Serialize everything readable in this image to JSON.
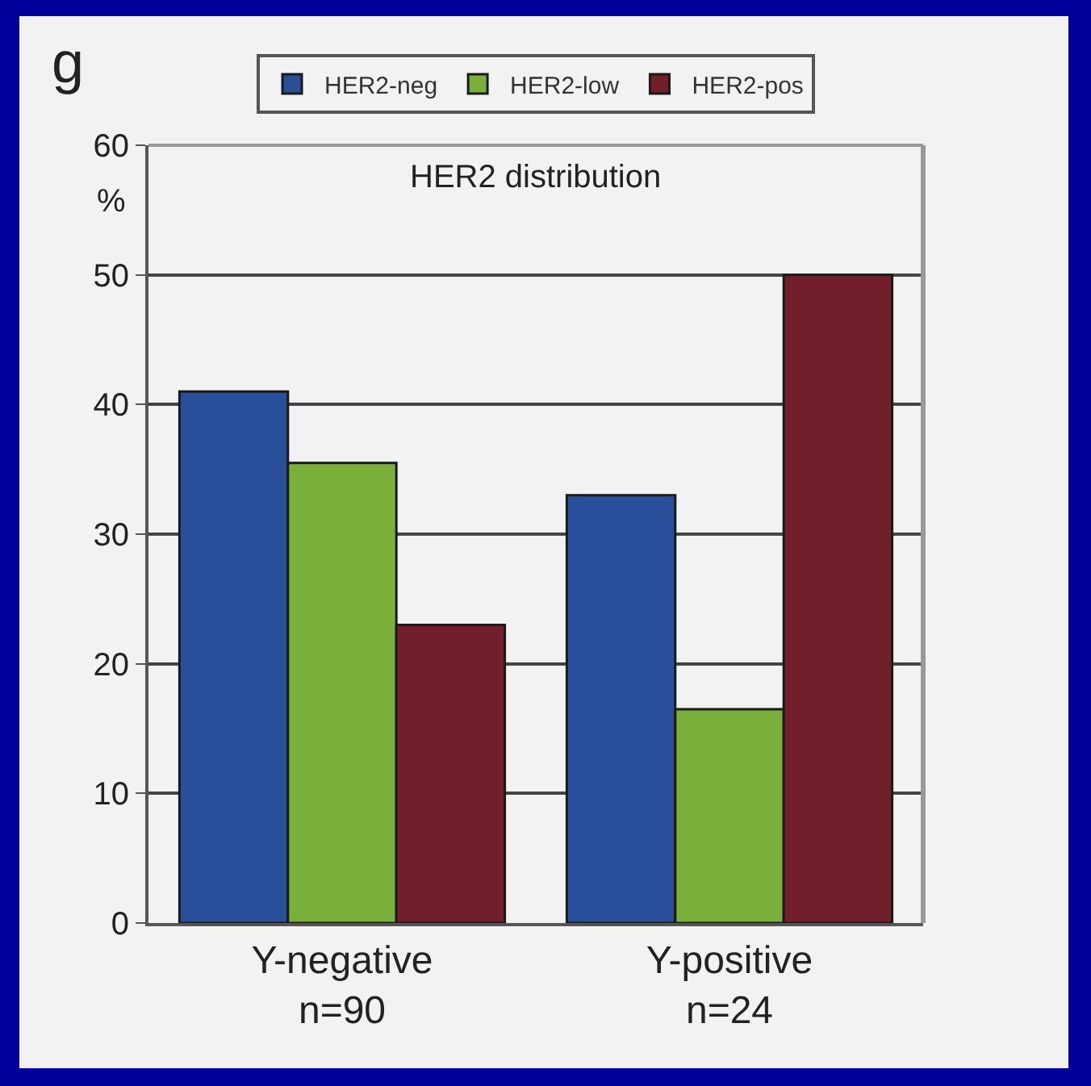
{
  "chart_data": {
    "type": "bar",
    "title": "HER2 distribution",
    "ylabel": "%",
    "annotations": [
      "g"
    ],
    "categories": [
      "Y-negative\nn=90",
      "Y-positive\nn=24"
    ],
    "series": [
      {
        "name": "HER2-neg",
        "color": "#2a4f9a",
        "values": [
          41,
          33
        ]
      },
      {
        "name": "HER2-low",
        "color": "#7aaf3c",
        "values": [
          35.5,
          16.5
        ]
      },
      {
        "name": "HER2-pos",
        "color": "#731f2b",
        "values": [
          23,
          50
        ]
      }
    ],
    "ylim": [
      0,
      60
    ],
    "yticks": [
      0,
      10,
      20,
      30,
      40,
      50,
      60
    ],
    "grid": "y",
    "legend": "top"
  }
}
